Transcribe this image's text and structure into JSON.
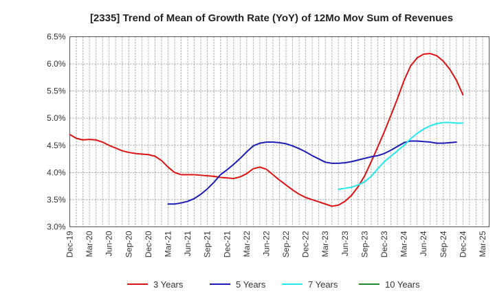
{
  "chart_data": {
    "type": "line",
    "title": "[2335]  Trend of Mean of Growth Rate (YoY) of 12Mo Mov Sum of Revenues",
    "xlabel": "",
    "ylabel": "",
    "ylim": [
      3.0,
      6.5
    ],
    "y_ticks": [
      "3.0%",
      "3.5%",
      "4.0%",
      "4.5%",
      "5.0%",
      "5.5%",
      "6.0%",
      "6.5%"
    ],
    "x_ticks": [
      "Dec-19",
      "Mar-20",
      "Jun-20",
      "Sep-20",
      "Dec-20",
      "Mar-21",
      "Jun-21",
      "Sep-21",
      "Dec-21",
      "Mar-22",
      "Jun-22",
      "Sep-22",
      "Dec-22",
      "Mar-23",
      "Jun-23",
      "Sep-23",
      "Dec-23",
      "Mar-24",
      "Jun-24",
      "Sep-24",
      "Dec-24",
      "Mar-25"
    ],
    "x_start": "Dec-19",
    "n_months": 64,
    "grid": true,
    "legend_position": "bottom",
    "series": [
      {
        "name": "3 Years",
        "color": "#dd1111",
        "start_index": 0,
        "values": [
          4.7,
          4.63,
          4.6,
          4.61,
          4.6,
          4.56,
          4.5,
          4.45,
          4.4,
          4.37,
          4.35,
          4.34,
          4.33,
          4.3,
          4.22,
          4.1,
          4.0,
          3.96,
          3.96,
          3.96,
          3.95,
          3.94,
          3.93,
          3.91,
          3.9,
          3.89,
          3.92,
          3.98,
          4.07,
          4.1,
          4.06,
          3.96,
          3.86,
          3.77,
          3.68,
          3.6,
          3.54,
          3.5,
          3.46,
          3.42,
          3.38,
          3.4,
          3.47,
          3.58,
          3.74,
          3.94,
          4.2,
          4.47,
          4.75,
          5.05,
          5.36,
          5.69,
          5.96,
          6.11,
          6.18,
          6.19,
          6.15,
          6.05,
          5.9,
          5.7,
          5.43
        ]
      },
      {
        "name": "5 Years",
        "color": "#1a1ab5",
        "start_index": 15,
        "values": [
          3.42,
          3.42,
          3.44,
          3.47,
          3.52,
          3.6,
          3.7,
          3.82,
          3.96,
          4.05,
          4.15,
          4.26,
          4.38,
          4.49,
          4.54,
          4.56,
          4.56,
          4.55,
          4.53,
          4.49,
          4.44,
          4.38,
          4.31,
          4.25,
          4.19,
          4.17,
          4.17,
          4.18,
          4.2,
          4.23,
          4.26,
          4.29,
          4.31,
          4.35,
          4.41,
          4.48,
          4.55,
          4.58,
          4.58,
          4.57,
          4.56,
          4.54,
          4.54,
          4.55,
          4.56
        ]
      },
      {
        "name": "7 Years",
        "color": "#22e8ee",
        "start_index": 41,
        "values": [
          3.69,
          3.71,
          3.73,
          3.77,
          3.83,
          3.93,
          4.07,
          4.2,
          4.3,
          4.4,
          4.5,
          4.62,
          4.72,
          4.8,
          4.86,
          4.9,
          4.92,
          4.92,
          4.91,
          4.91
        ]
      },
      {
        "name": "10 Years",
        "color": "#22882b",
        "start_index": 0,
        "values": []
      }
    ]
  }
}
